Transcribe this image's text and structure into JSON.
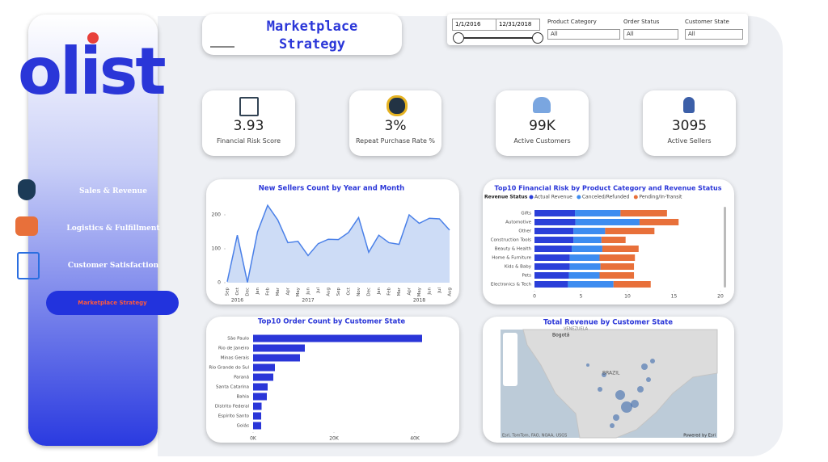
{
  "sidebar": {
    "logo": "olist",
    "nav": [
      "Sales & Revenue",
      "Logistics & Fulfillment",
      "Customer Satisfaction",
      "Marketplace Strategy"
    ]
  },
  "header": {
    "title": "Marketplace Strategy"
  },
  "filters": {
    "start_date": "1/1/2016",
    "end_date": "12/31/2018",
    "dropdowns": [
      {
        "label": "Product Category",
        "value": "All"
      },
      {
        "label": "Order Status",
        "value": "All"
      },
      {
        "label": "Customer State",
        "value": "All"
      }
    ]
  },
  "kpis": [
    {
      "value": "3.93",
      "label": "Financial Risk Score"
    },
    {
      "value": "3%",
      "label": "Repeat Purchase Rate %"
    },
    {
      "value": "99K",
      "label": "Active Customers"
    },
    {
      "value": "3095",
      "label": "Active Sellers"
    }
  ],
  "chart_data": [
    {
      "type": "line",
      "title": "New Sellers Count by Year and Month",
      "color": "#4a80e8",
      "fill": "#cddcf6",
      "categories": [
        "Sep",
        "Oct",
        "Dec",
        "Jan",
        "Feb",
        "Mar",
        "Apr",
        "May",
        "Jun",
        "Jul",
        "Aug",
        "Sep",
        "Oct",
        "Nov",
        "Dec",
        "Jan",
        "Feb",
        "Mar",
        "Apr",
        "May",
        "Jun",
        "Jul",
        "Aug"
      ],
      "year_labels": [
        "2016",
        "2017",
        "2018"
      ],
      "values": [
        3,
        140,
        1,
        150,
        228,
        185,
        118,
        122,
        80,
        115,
        128,
        127,
        148,
        192,
        90,
        140,
        118,
        113,
        200,
        175,
        190,
        188,
        155
      ],
      "ylim": [
        0,
        250
      ],
      "yticks": [
        0,
        100,
        200
      ]
    },
    {
      "type": "stacked_hbar",
      "title": "Top10 Financial Risk by Product Category and Revenue Status",
      "legend_title": "Revenue Status",
      "categories": [
        "Gifts",
        "Automotive",
        "Other",
        "Construction Tools",
        "Beauty & Health",
        "Home & Furniture",
        "Kids & Baby",
        "Pets",
        "Electronics & Tech"
      ],
      "series": [
        {
          "name": "Actual Revenue",
          "color": "#2b3fd9",
          "values": [
            4.35,
            4.4,
            4.2,
            4.2,
            4.0,
            3.8,
            3.8,
            3.7,
            3.6
          ]
        },
        {
          "name": "Canceled/Refunded",
          "color": "#3d8cf0",
          "values": [
            4.9,
            6.9,
            3.4,
            3.0,
            3.3,
            3.2,
            3.3,
            3.3,
            4.9
          ]
        },
        {
          "name": "Pending/In-Transit",
          "color": "#e8703a",
          "values": [
            5.0,
            4.2,
            5.3,
            2.6,
            3.9,
            3.8,
            3.6,
            3.7,
            4.0
          ]
        }
      ],
      "xlim": [
        0,
        20
      ],
      "xticks": [
        0,
        5,
        10,
        15,
        20
      ]
    },
    {
      "type": "hbar",
      "title": "Top10 Order Count by Customer State",
      "color": "#2a36d8",
      "categories": [
        "São Paulo",
        "Rio de Janeiro",
        "Minas Gerais",
        "Rio Grande do Sul",
        "Paraná",
        "Santa Catarina",
        "Bahia",
        "Distrito Federal",
        "Espírito Santo",
        "Goiás"
      ],
      "values": [
        41800,
        12800,
        11600,
        5400,
        5000,
        3600,
        3400,
        2100,
        2000,
        2000
      ],
      "xlim": [
        0,
        45000
      ],
      "xticks": [
        {
          "value": 0,
          "label": "0K"
        },
        {
          "value": 20000,
          "label": "20K"
        },
        {
          "value": 40000,
          "label": "40K"
        }
      ]
    }
  ],
  "map": {
    "title": "Total Revenue by Customer State",
    "labels": [
      "Bogotá",
      "VENEZUELA",
      "BRAZIL"
    ],
    "attribution": "Esri, TomTom, FAO, NOAA, USGS",
    "powered_by": "Powered by Esri"
  }
}
